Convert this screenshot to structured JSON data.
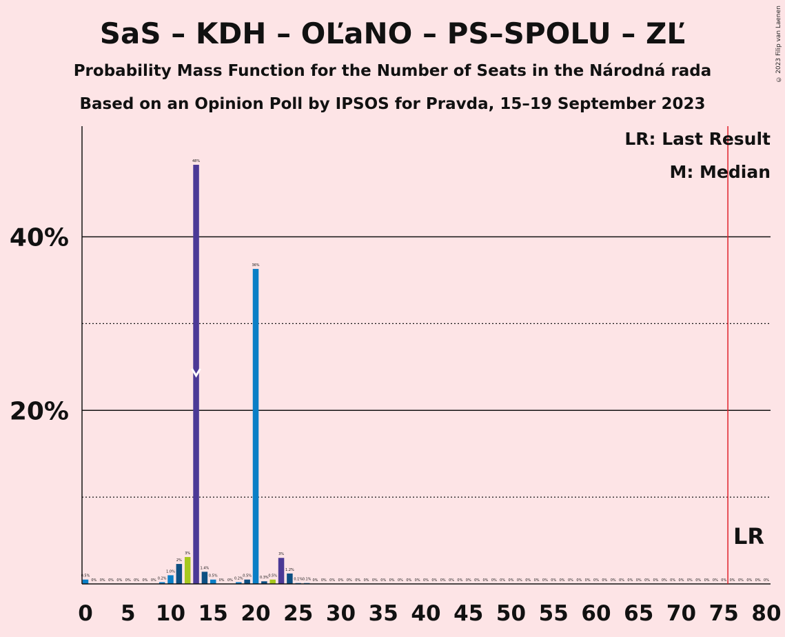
{
  "chart_data": {
    "type": "bar",
    "title": "SaS – KDH – OĽaNO – PS–SPOLU – ZĽ",
    "subtitle": "Probability Mass Function for the Number of Seats in the Národná rada",
    "subtitle2": "Based on an Opinion Poll by IPSOS for Pravda, 15–19 September 2023",
    "copyright": "© 2023 Filip van Laenen",
    "xlim": [
      0,
      80
    ],
    "ylim": [
      0,
      52
    ],
    "x_ticks": [
      0,
      5,
      10,
      15,
      20,
      25,
      30,
      35,
      40,
      45,
      50,
      55,
      60,
      65,
      70,
      75,
      80
    ],
    "y_ticks_labeled": [
      {
        "value": 20,
        "label": "20%"
      },
      {
        "value": 40,
        "label": "40%"
      }
    ],
    "y_gridlines_solid": [
      20,
      40
    ],
    "y_gridlines_dotted": [
      10,
      30
    ],
    "legend": [
      "LR: Last Result",
      "M: Median"
    ],
    "legend_position": "top-right",
    "last_result": {
      "x": 76,
      "label": "LR"
    },
    "median": 13,
    "colors": {
      "purple": "#4b3996",
      "blue": "#0a7ec6",
      "navy": "#0d4f82",
      "green": "#a7c81d",
      "lr_line": "#e0202a",
      "background": "#fde4e6"
    },
    "bars": [
      {
        "x": 0,
        "value": 0.5,
        "label": "0.5%",
        "color": "blue"
      },
      {
        "x": 1,
        "value": 0,
        "label": "0%",
        "color": "blue"
      },
      {
        "x": 2,
        "value": 0,
        "label": "0%",
        "color": "blue"
      },
      {
        "x": 3,
        "value": 0,
        "label": "0%",
        "color": "blue"
      },
      {
        "x": 4,
        "value": 0,
        "label": "0%",
        "color": "blue"
      },
      {
        "x": 5,
        "value": 0,
        "label": "0%",
        "color": "blue"
      },
      {
        "x": 6,
        "value": 0,
        "label": "0%",
        "color": "blue"
      },
      {
        "x": 7,
        "value": 0,
        "label": "0%",
        "color": "blue"
      },
      {
        "x": 8,
        "value": 0,
        "label": "0%",
        "color": "blue"
      },
      {
        "x": 9,
        "value": 0.2,
        "label": "0.2%",
        "color": "blue"
      },
      {
        "x": 10,
        "value": 1.0,
        "label": "1.0%",
        "color": "blue"
      },
      {
        "x": 11,
        "value": 2.3,
        "label": "2%",
        "color": "navy"
      },
      {
        "x": 12,
        "value": 3.1,
        "label": "3%",
        "color": "green"
      },
      {
        "x": 13,
        "value": 48.3,
        "label": "48%",
        "color": "purple"
      },
      {
        "x": 14,
        "value": 1.4,
        "label": "1.4%",
        "color": "navy"
      },
      {
        "x": 15,
        "value": 0.5,
        "label": "0.5%",
        "color": "blue"
      },
      {
        "x": 16,
        "value": 0,
        "label": "0%",
        "color": "blue"
      },
      {
        "x": 17,
        "value": 0,
        "label": "0%",
        "color": "blue"
      },
      {
        "x": 18,
        "value": 0.2,
        "label": "0.2%",
        "color": "blue"
      },
      {
        "x": 19,
        "value": 0.5,
        "label": "0.5%",
        "color": "navy"
      },
      {
        "x": 20,
        "value": 36.3,
        "label": "36%",
        "color": "blue"
      },
      {
        "x": 21,
        "value": 0.3,
        "label": "0.3%",
        "color": "navy"
      },
      {
        "x": 22,
        "value": 0.5,
        "label": "0.5%",
        "color": "green"
      },
      {
        "x": 23,
        "value": 3.0,
        "label": "3%",
        "color": "purple"
      },
      {
        "x": 24,
        "value": 1.2,
        "label": "1.2%",
        "color": "navy"
      },
      {
        "x": 25,
        "value": 0.1,
        "label": "0.1%",
        "color": "blue"
      },
      {
        "x": 26,
        "value": 0.1,
        "label": "0.1%",
        "color": "blue"
      },
      {
        "x": 27,
        "value": 0,
        "label": "0%",
        "color": "blue"
      },
      {
        "x": 28,
        "value": 0,
        "label": "0%",
        "color": "blue"
      },
      {
        "x": 29,
        "value": 0,
        "label": "0%",
        "color": "blue"
      },
      {
        "x": 30,
        "value": 0,
        "label": "0%",
        "color": "blue"
      },
      {
        "x": 31,
        "value": 0,
        "label": "0%",
        "color": "blue"
      },
      {
        "x": 32,
        "value": 0,
        "label": "0%",
        "color": "blue"
      },
      {
        "x": 33,
        "value": 0,
        "label": "0%",
        "color": "blue"
      },
      {
        "x": 34,
        "value": 0,
        "label": "0%",
        "color": "blue"
      },
      {
        "x": 35,
        "value": 0,
        "label": "0%",
        "color": "blue"
      },
      {
        "x": 36,
        "value": 0,
        "label": "0%",
        "color": "blue"
      },
      {
        "x": 37,
        "value": 0,
        "label": "0%",
        "color": "blue"
      },
      {
        "x": 38,
        "value": 0,
        "label": "0%",
        "color": "blue"
      },
      {
        "x": 39,
        "value": 0,
        "label": "0%",
        "color": "blue"
      },
      {
        "x": 40,
        "value": 0,
        "label": "0%",
        "color": "blue"
      },
      {
        "x": 41,
        "value": 0,
        "label": "0%",
        "color": "blue"
      },
      {
        "x": 42,
        "value": 0,
        "label": "0%",
        "color": "blue"
      },
      {
        "x": 43,
        "value": 0,
        "label": "0%",
        "color": "blue"
      },
      {
        "x": 44,
        "value": 0,
        "label": "0%",
        "color": "blue"
      },
      {
        "x": 45,
        "value": 0,
        "label": "0%",
        "color": "blue"
      },
      {
        "x": 46,
        "value": 0,
        "label": "0%",
        "color": "blue"
      },
      {
        "x": 47,
        "value": 0,
        "label": "0%",
        "color": "blue"
      },
      {
        "x": 48,
        "value": 0,
        "label": "0%",
        "color": "blue"
      },
      {
        "x": 49,
        "value": 0,
        "label": "0%",
        "color": "blue"
      },
      {
        "x": 50,
        "value": 0,
        "label": "0%",
        "color": "blue"
      },
      {
        "x": 51,
        "value": 0,
        "label": "0%",
        "color": "blue"
      },
      {
        "x": 52,
        "value": 0,
        "label": "0%",
        "color": "blue"
      },
      {
        "x": 53,
        "value": 0,
        "label": "0%",
        "color": "blue"
      },
      {
        "x": 54,
        "value": 0,
        "label": "0%",
        "color": "blue"
      },
      {
        "x": 55,
        "value": 0,
        "label": "0%",
        "color": "blue"
      },
      {
        "x": 56,
        "value": 0,
        "label": "0%",
        "color": "blue"
      },
      {
        "x": 57,
        "value": 0,
        "label": "0%",
        "color": "blue"
      },
      {
        "x": 58,
        "value": 0,
        "label": "0%",
        "color": "blue"
      },
      {
        "x": 59,
        "value": 0,
        "label": "0%",
        "color": "blue"
      },
      {
        "x": 60,
        "value": 0,
        "label": "0%",
        "color": "blue"
      },
      {
        "x": 61,
        "value": 0,
        "label": "0%",
        "color": "blue"
      },
      {
        "x": 62,
        "value": 0,
        "label": "0%",
        "color": "blue"
      },
      {
        "x": 63,
        "value": 0,
        "label": "0%",
        "color": "blue"
      },
      {
        "x": 64,
        "value": 0,
        "label": "0%",
        "color": "blue"
      },
      {
        "x": 65,
        "value": 0,
        "label": "0%",
        "color": "blue"
      },
      {
        "x": 66,
        "value": 0,
        "label": "0%",
        "color": "blue"
      },
      {
        "x": 67,
        "value": 0,
        "label": "0%",
        "color": "blue"
      },
      {
        "x": 68,
        "value": 0,
        "label": "0%",
        "color": "blue"
      },
      {
        "x": 69,
        "value": 0,
        "label": "0%",
        "color": "blue"
      },
      {
        "x": 70,
        "value": 0,
        "label": "0%",
        "color": "blue"
      },
      {
        "x": 71,
        "value": 0,
        "label": "0%",
        "color": "blue"
      },
      {
        "x": 72,
        "value": 0,
        "label": "0%",
        "color": "blue"
      },
      {
        "x": 73,
        "value": 0,
        "label": "0%",
        "color": "blue"
      },
      {
        "x": 74,
        "value": 0,
        "label": "0%",
        "color": "blue"
      },
      {
        "x": 75,
        "value": 0,
        "label": "0%",
        "color": "blue"
      },
      {
        "x": 76,
        "value": 0,
        "label": "0%",
        "color": "blue"
      },
      {
        "x": 77,
        "value": 0,
        "label": "0%",
        "color": "blue"
      },
      {
        "x": 78,
        "value": 0,
        "label": "0%",
        "color": "blue"
      },
      {
        "x": 79,
        "value": 0,
        "label": "0%",
        "color": "blue"
      },
      {
        "x": 80,
        "value": 0,
        "label": "0%",
        "color": "blue"
      }
    ]
  }
}
